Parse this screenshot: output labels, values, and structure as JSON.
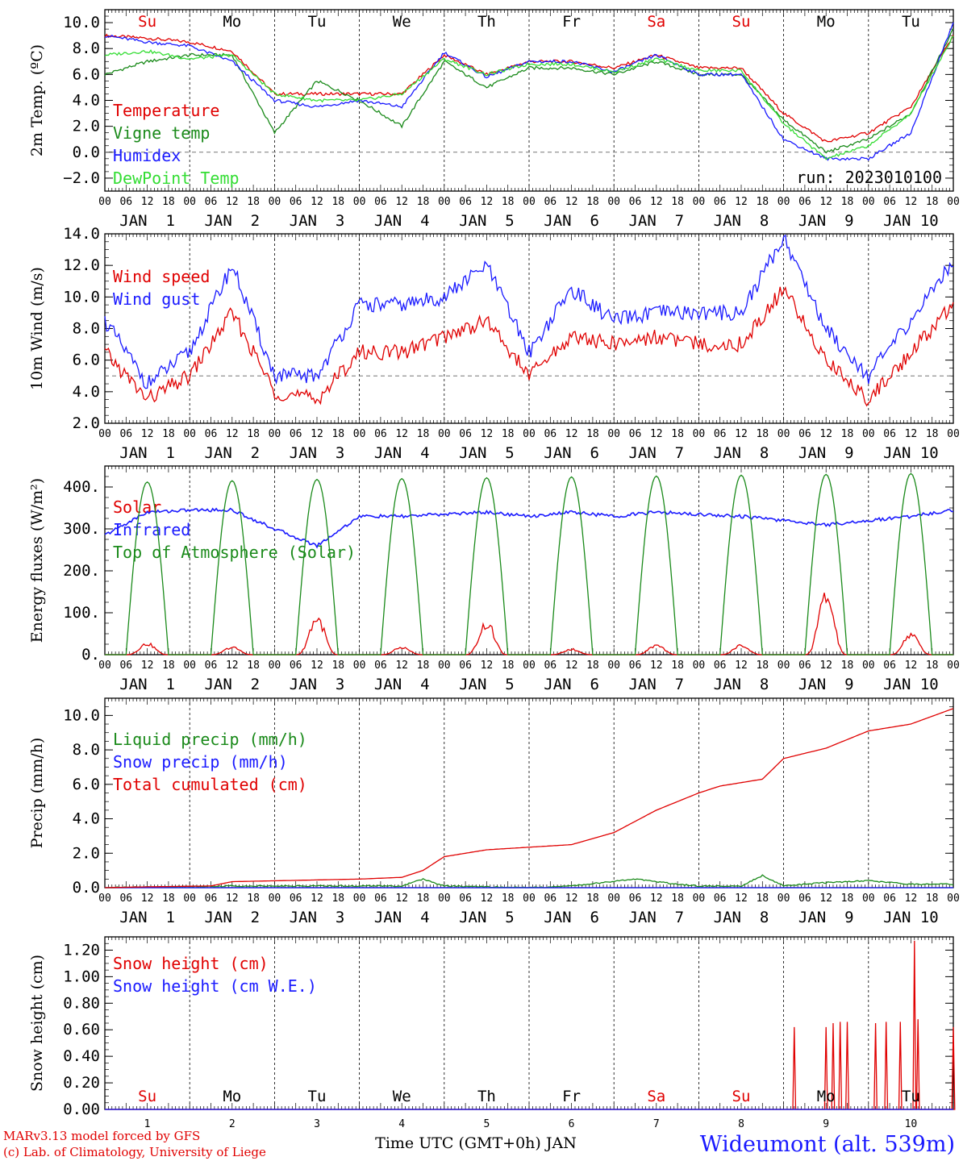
{
  "footer": {
    "model": "MARv3.13 model forced by GFS",
    "lab": "(c) Lab. of Climatology, University of Liege",
    "station": "Wideumont (alt. 539m)",
    "xtitle": "Time UTC (GMT+0h) JAN"
  },
  "days": {
    "weekdays": [
      "Su",
      "Mo",
      "Tu",
      "We",
      "Th",
      "Fr",
      "Sa",
      "Su",
      "Mo",
      "Tu"
    ],
    "weekend_color": "#e00000",
    "weekday_color": "#000000",
    "dates": [
      "JAN  1",
      "JAN  2",
      "JAN  3",
      "JAN  4",
      "JAN  5",
      "JAN  6",
      "JAN  7",
      "JAN  8",
      "JAN  9",
      "JAN 10"
    ],
    "numbers": [
      "1",
      "2",
      "3",
      "4",
      "5",
      "6",
      "7",
      "8",
      "9",
      "10"
    ],
    "hour_ticks": [
      "00",
      "06",
      "12",
      "18"
    ],
    "final_tick": "00"
  },
  "chart_data": [
    {
      "type": "line",
      "ylabel": "2m Temp. (ºC)",
      "ylim": [
        -3.0,
        11.0
      ],
      "yticks": [
        -2.0,
        0.0,
        2.0,
        4.0,
        6.0,
        8.0,
        10.0
      ],
      "ytick_labels": [
        "−2.0",
        "0.0",
        "2.0",
        "4.0",
        "6.0",
        "8.0",
        "10.0"
      ],
      "reference_line": 0.0,
      "annotation": "run: 2023010100",
      "x_unit": "hours since JAN 1 00 UTC",
      "series": [
        {
          "name": "Temperature",
          "color": "#e00000",
          "x": [
            0,
            12,
            24,
            36,
            48,
            60,
            72,
            84,
            96,
            108,
            120,
            132,
            144,
            156,
            168,
            180,
            192,
            204,
            216,
            228,
            240
          ],
          "values": [
            9.0,
            8.8,
            8.5,
            7.8,
            4.5,
            4.5,
            4.5,
            4.5,
            7.5,
            6.0,
            7.0,
            7.0,
            6.5,
            7.5,
            6.5,
            6.5,
            3.0,
            0.8,
            1.5,
            3.5,
            9.0
          ]
        },
        {
          "name": "Vigne temp",
          "color": "#1a8a1a",
          "x": [
            0,
            12,
            24,
            36,
            48,
            60,
            72,
            84,
            96,
            108,
            120,
            132,
            144,
            156,
            168,
            180,
            192,
            204,
            216,
            228,
            240
          ],
          "values": [
            6.0,
            7.0,
            7.5,
            7.5,
            1.5,
            5.5,
            4.0,
            2.0,
            7.0,
            5.0,
            6.5,
            6.5,
            6.0,
            7.0,
            6.0,
            6.0,
            2.5,
            0.0,
            1.0,
            3.0,
            9.5
          ]
        },
        {
          "name": "Humidex",
          "color": "#1a1aff",
          "x": [
            0,
            12,
            24,
            36,
            48,
            60,
            72,
            84,
            96,
            108,
            120,
            132,
            144,
            156,
            168,
            180,
            192,
            204,
            216,
            228,
            240
          ],
          "values": [
            9.0,
            8.5,
            8.2,
            7.0,
            4.0,
            3.5,
            4.0,
            3.5,
            7.7,
            5.8,
            7.0,
            7.0,
            6.2,
            7.5,
            6.0,
            6.0,
            1.0,
            -0.5,
            -0.5,
            1.5,
            10.0
          ]
        },
        {
          "name": "DewPoint Temp",
          "color": "#33dd33",
          "x": [
            0,
            12,
            24,
            36,
            48,
            60,
            72,
            84,
            96,
            108,
            120,
            132,
            144,
            156,
            168,
            180,
            192,
            204,
            216,
            228,
            240
          ],
          "values": [
            7.5,
            7.8,
            7.2,
            7.5,
            4.5,
            4.0,
            4.0,
            4.5,
            7.2,
            6.0,
            6.8,
            6.8,
            6.2,
            7.2,
            6.3,
            6.3,
            2.2,
            -0.5,
            0.5,
            3.0,
            9.0
          ]
        }
      ]
    },
    {
      "type": "line",
      "ylabel": "10m Wind (m/s)",
      "ylim": [
        2.0,
        14.0
      ],
      "yticks": [
        2.0,
        4.0,
        6.0,
        8.0,
        10.0,
        12.0,
        14.0
      ],
      "ytick_labels": [
        "2.0",
        "4.0",
        "6.0",
        "8.0",
        "10.0",
        "12.0",
        "14.0"
      ],
      "reference_line": 5.0,
      "x_unit": "hours since JAN 1 00 UTC",
      "series": [
        {
          "name": "Wind speed",
          "color": "#e00000",
          "x": [
            0,
            12,
            24,
            36,
            48,
            60,
            72,
            84,
            96,
            108,
            120,
            132,
            144,
            156,
            168,
            180,
            192,
            204,
            216,
            228,
            240
          ],
          "values": [
            6.5,
            3.5,
            5.0,
            9.0,
            4.0,
            3.5,
            6.5,
            6.5,
            7.5,
            8.5,
            5.0,
            7.5,
            7.0,
            7.5,
            7.0,
            7.0,
            10.5,
            6.0,
            3.5,
            6.5,
            9.5
          ]
        },
        {
          "name": "Wind gust",
          "color": "#1a1aff",
          "x": [
            0,
            12,
            24,
            36,
            48,
            60,
            72,
            84,
            96,
            108,
            120,
            132,
            144,
            156,
            168,
            180,
            192,
            204,
            216,
            228,
            240
          ],
          "values": [
            8.5,
            4.5,
            6.5,
            12.0,
            5.0,
            5.0,
            9.5,
            9.5,
            10.0,
            12.0,
            6.5,
            10.5,
            8.5,
            9.0,
            9.0,
            9.0,
            13.8,
            8.0,
            5.0,
            8.5,
            12.3
          ]
        }
      ]
    },
    {
      "type": "line",
      "ylabel": "Energy fluxes (W/m²)",
      "ylim": [
        0,
        450
      ],
      "yticks": [
        0,
        100,
        200,
        300,
        400
      ],
      "ytick_labels": [
        "0.",
        "100.",
        "200.",
        "300.",
        "400."
      ],
      "x_unit": "hours since JAN 1 00 UTC",
      "series": [
        {
          "name": "Solar",
          "color": "#e00000",
          "daily_peak": [
            30,
            20,
            100,
            20,
            85,
            15,
            25,
            25,
            160,
            55
          ]
        },
        {
          "name": "Infrared",
          "color": "#1a1aff",
          "x": [
            0,
            12,
            24,
            36,
            48,
            60,
            72,
            84,
            96,
            108,
            120,
            132,
            144,
            156,
            168,
            180,
            192,
            204,
            216,
            228,
            240
          ],
          "values": [
            285,
            340,
            345,
            345,
            300,
            260,
            330,
            330,
            335,
            340,
            330,
            340,
            330,
            340,
            335,
            330,
            320,
            310,
            320,
            330,
            345
          ]
        },
        {
          "name": "Top of Atmosphere (Solar)",
          "color": "#1a8a1a",
          "daily_peak": [
            412,
            415,
            418,
            420,
            422,
            424,
            426,
            428,
            430,
            432
          ]
        }
      ]
    },
    {
      "type": "line",
      "ylabel": "Precip (mm/h)",
      "ylim": [
        0,
        11.0
      ],
      "yticks": [
        0,
        2.0,
        4.0,
        6.0,
        8.0,
        10.0
      ],
      "ytick_labels": [
        "0.0",
        "2.0",
        "4.0",
        "6.0",
        "8.0",
        "10.0"
      ],
      "x_unit": "hours since JAN 1 00 UTC",
      "series": [
        {
          "name": "Liquid precip (mm/h)",
          "color": "#1a8a1a",
          "x": [
            0,
            36,
            84,
            90,
            96,
            120,
            132,
            150,
            162,
            168,
            180,
            186,
            192,
            204,
            216,
            228,
            240
          ],
          "values": [
            0.0,
            0.1,
            0.1,
            0.5,
            0.1,
            0.0,
            0.1,
            0.5,
            0.2,
            0.1,
            0.1,
            0.7,
            0.1,
            0.3,
            0.4,
            0.2,
            0.2
          ]
        },
        {
          "name": "Snow precip (mm/h)",
          "color": "#1a1aff",
          "x": [
            0,
            240
          ],
          "values": [
            0.0,
            0.0
          ]
        },
        {
          "name": "Total cumulated (cm)",
          "color": "#e00000",
          "x": [
            0,
            12,
            30,
            36,
            48,
            60,
            72,
            84,
            90,
            96,
            108,
            120,
            132,
            144,
            156,
            168,
            174,
            180,
            186,
            192,
            204,
            216,
            228,
            240
          ],
          "values": [
            0.0,
            0.05,
            0.1,
            0.35,
            0.4,
            0.45,
            0.5,
            0.6,
            1.0,
            1.8,
            2.2,
            2.35,
            2.5,
            3.2,
            4.5,
            5.5,
            5.9,
            6.1,
            6.3,
            7.5,
            8.1,
            9.1,
            9.5,
            10.4
          ]
        }
      ]
    },
    {
      "type": "line",
      "ylabel": "Snow height (cm)",
      "ylim": [
        0,
        1.3
      ],
      "yticks": [
        0.0,
        0.2,
        0.4,
        0.6,
        0.8,
        1.0,
        1.2
      ],
      "ytick_labels": [
        "0.00",
        "0.20",
        "0.40",
        "0.60",
        "0.80",
        "1.00",
        "1.20"
      ],
      "x_unit": "hours since JAN 1 00 UTC",
      "series": [
        {
          "name": "Snow height (cm)",
          "color": "#e00000",
          "spikes": [
            [
              195,
              0.62
            ],
            [
              204,
              0.62
            ],
            [
              206,
              0.65
            ],
            [
              208,
              0.66
            ],
            [
              210,
              0.66
            ],
            [
              218,
              0.65
            ],
            [
              221,
              0.66
            ],
            [
              225,
              0.66
            ],
            [
              229,
              1.27
            ],
            [
              230,
              0.68
            ],
            [
              240,
              0.62
            ]
          ]
        },
        {
          "name": "Snow height (cm W.E.)",
          "color": "#1a1aff",
          "x": [
            0,
            240
          ],
          "values": [
            0,
            0
          ]
        }
      ]
    }
  ]
}
